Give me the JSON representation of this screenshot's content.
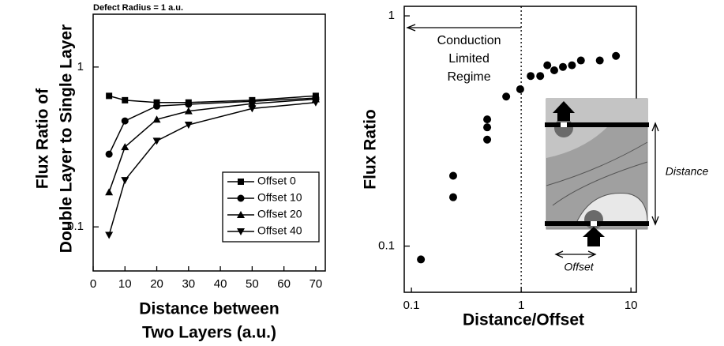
{
  "chart_data": [
    {
      "type": "line",
      "annotation": "Defect Radius = 1 a.u.",
      "y_label_lines": [
        "Flux Ratio of",
        "Double Layer to Single Layer"
      ],
      "x_label_lines": [
        "Distance between",
        "Two Layers (a.u.)"
      ],
      "x": [
        5,
        10,
        20,
        30,
        50,
        70
      ],
      "xlim": [
        0,
        73
      ],
      "xticks": [
        0,
        10,
        20,
        30,
        40,
        50,
        60,
        70
      ],
      "yscale": "log",
      "ylim": [
        0.053,
        2.14
      ],
      "yticks": [
        0.1,
        1
      ],
      "legend": "lower right",
      "series": [
        {
          "name": "Offset 0",
          "marker": "square",
          "color": "#000000",
          "values": [
            0.66,
            0.62,
            0.6,
            0.6,
            0.62,
            0.66
          ]
        },
        {
          "name": "Offset 10",
          "marker": "circle",
          "color": "#000000",
          "values": [
            0.285,
            0.46,
            0.57,
            0.585,
            0.61,
            0.64
          ]
        },
        {
          "name": "Offset 20",
          "marker": "triangle-up",
          "color": "#000000",
          "values": [
            0.165,
            0.316,
            0.47,
            0.53,
            0.59,
            0.63
          ]
        },
        {
          "name": "Offset 40",
          "marker": "triangle-down",
          "color": "#000000",
          "values": [
            0.089,
            0.196,
            0.345,
            0.435,
            0.55,
            0.6
          ]
        }
      ]
    },
    {
      "type": "scatter",
      "y_label": "Flux Ratio",
      "x_label": "Distance/Offset",
      "annotation_lines": [
        "Conduction",
        "Limited",
        "Regime"
      ],
      "vline": 1,
      "inset": {
        "distance_label": "Distance",
        "offset_label": "Offset"
      },
      "xscale": "log",
      "xlim": [
        0.086,
        11.2
      ],
      "xticks": [
        0.1,
        1,
        10
      ],
      "yscale": "log",
      "ylim": [
        0.063,
        1.1
      ],
      "yticks": [
        0.1,
        1
      ],
      "color": "#000000",
      "x": [
        0.122,
        0.24,
        0.24,
        0.49,
        0.49,
        0.49,
        0.73,
        0.98,
        1.22,
        1.49,
        1.73,
        2.0,
        2.4,
        2.9,
        3.5,
        5.2,
        7.3
      ],
      "values": [
        0.0875,
        0.202,
        0.163,
        0.355,
        0.328,
        0.29,
        0.446,
        0.48,
        0.548,
        0.548,
        0.61,
        0.58,
        0.6,
        0.61,
        0.64,
        0.64,
        0.67
      ]
    }
  ]
}
